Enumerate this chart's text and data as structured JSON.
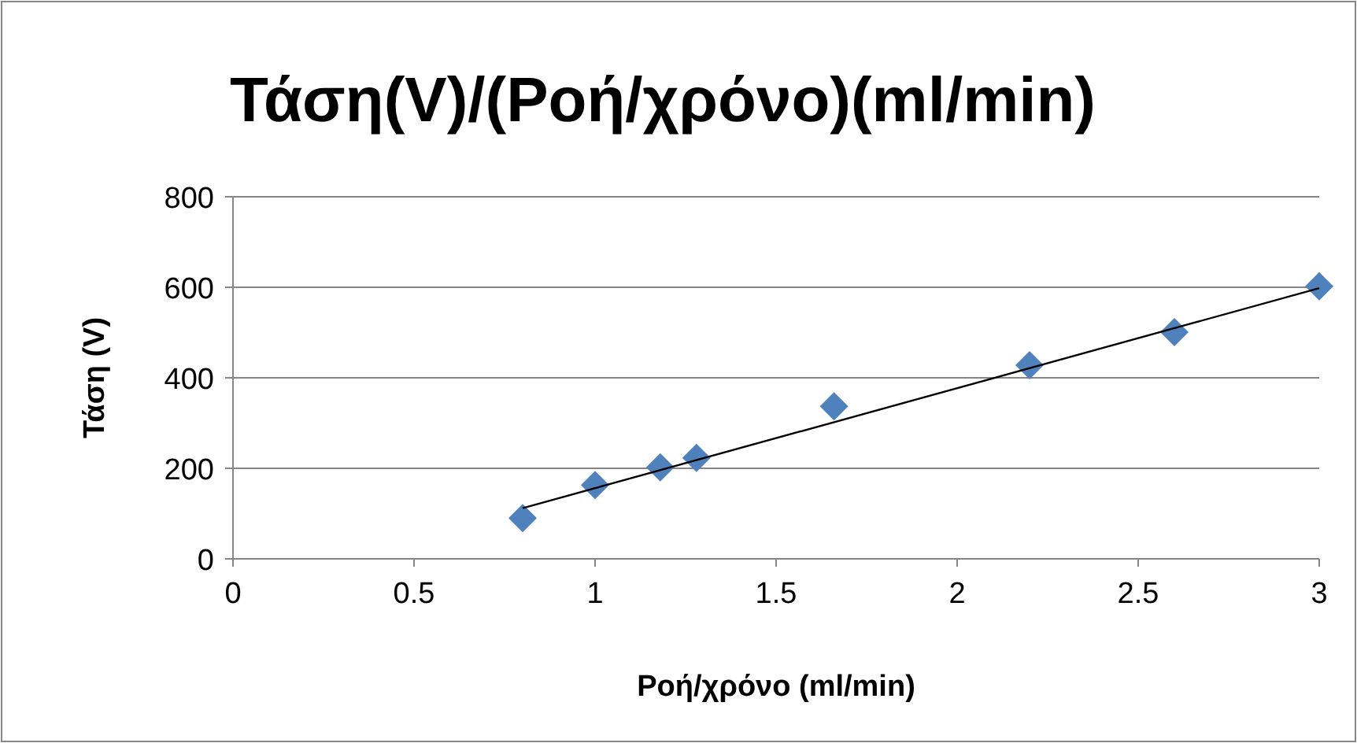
{
  "chart_data": {
    "type": "scatter",
    "title": "Τάση(V)/(Ροή/χρόνο)(ml/min)",
    "xlabel": "Ροή/χρόνο (ml/min)",
    "ylabel": "Τάση (V)",
    "xlim": [
      0,
      3
    ],
    "ylim": [
      0,
      800
    ],
    "xticks": [
      0,
      0.5,
      1,
      1.5,
      2,
      2.5,
      3
    ],
    "yticks": [
      0,
      200,
      400,
      600,
      800
    ],
    "grid": "y",
    "marker": "diamond",
    "series": [
      {
        "color": "#4f81bd",
        "x": [
          0.8,
          1,
          1.18,
          1.28,
          1.66,
          2.2,
          2.6,
          3
        ],
        "values": [
          90,
          163,
          202,
          223,
          337,
          428,
          501,
          602
        ]
      },
      {
        "type": "line",
        "color": "#000000",
        "x": [
          0.8,
          3
        ],
        "values": [
          112,
          598
        ],
        "marker": "none",
        "line_style": "solid"
      }
    ]
  }
}
